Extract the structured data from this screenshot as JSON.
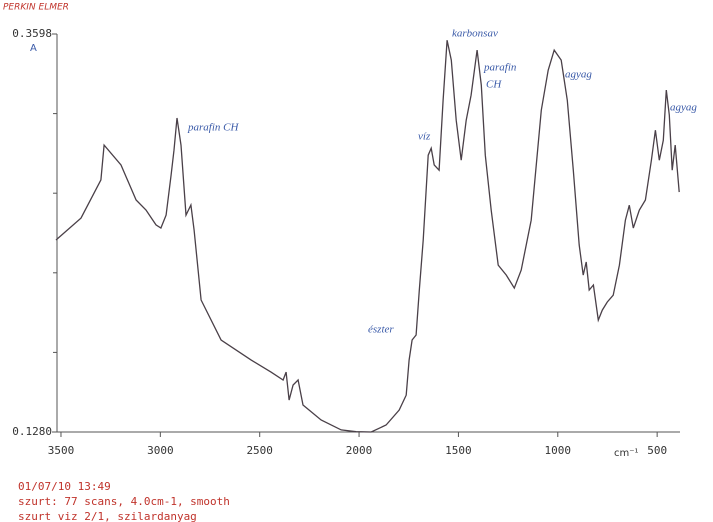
{
  "header": {
    "brand": "PERKIN ELMER"
  },
  "chart_data": {
    "type": "line",
    "y_unit": "A",
    "x_unit": "cm⁻¹",
    "xlim": [
      3520,
      385
    ],
    "xticks": [
      3500,
      3000,
      2500,
      2000,
      1500,
      1000,
      500
    ],
    "ylim": [
      0.128,
      0.3598
    ],
    "yticks": [
      {
        "value": 0.128,
        "label": "0.1280"
      },
      {
        "value": 0.3598,
        "label": "0.3598"
      }
    ],
    "yminorticks": [
      0.17436,
      0.22072,
      0.26708,
      0.31344
    ],
    "grid": false,
    "color": "#4a4048",
    "x": [
      3525,
      3399,
      3299,
      3283,
      3198,
      3122,
      3072,
      3022,
      2997,
      2971,
      2946,
      2931,
      2916,
      2896,
      2871,
      2846,
      2830,
      2795,
      2694,
      2543,
      2443,
      2382,
      2367,
      2352,
      2332,
      2307,
      2282,
      2191,
      2090,
      2015,
      1939,
      1864,
      1798,
      1763,
      1748,
      1733,
      1713,
      1697,
      1677,
      1652,
      1637,
      1622,
      1597,
      1577,
      1557,
      1536,
      1511,
      1486,
      1461,
      1436,
      1406,
      1385,
      1365,
      1335,
      1300,
      1259,
      1219,
      1184,
      1134,
      1083,
      1048,
      1018,
      983,
      952,
      922,
      892,
      872,
      857,
      842,
      821,
      796,
      776,
      751,
      721,
      690,
      660,
      640,
      620,
      590,
      559,
      529,
      509,
      489,
      469,
      454,
      439,
      424,
      409,
      389
    ],
    "values": [
      0.2398,
      0.2526,
      0.2748,
      0.2951,
      0.2835,
      0.2631,
      0.2573,
      0.2486,
      0.2468,
      0.2543,
      0.2776,
      0.2922,
      0.3109,
      0.2951,
      0.2543,
      0.2602,
      0.2456,
      0.2049,
      0.1816,
      0.1699,
      0.1629,
      0.1583,
      0.1629,
      0.1466,
      0.1554,
      0.1583,
      0.1437,
      0.135,
      0.1292,
      0.1282,
      0.128,
      0.1321,
      0.1408,
      0.1495,
      0.1699,
      0.1816,
      0.1845,
      0.2106,
      0.2397,
      0.2892,
      0.2933,
      0.2835,
      0.2805,
      0.3212,
      0.3562,
      0.3446,
      0.3096,
      0.2863,
      0.3096,
      0.3242,
      0.3504,
      0.33,
      0.2892,
      0.2572,
      0.2252,
      0.2194,
      0.2118,
      0.2223,
      0.2514,
      0.3154,
      0.3387,
      0.3504,
      0.3446,
      0.3212,
      0.2805,
      0.2369,
      0.2194,
      0.227,
      0.2107,
      0.2136,
      0.1932,
      0.199,
      0.2037,
      0.2077,
      0.2252,
      0.2514,
      0.2601,
      0.2468,
      0.2572,
      0.2631,
      0.2863,
      0.3038,
      0.2863,
      0.2979,
      0.3271,
      0.3126,
      0.2805,
      0.2951,
      0.2677
    ],
    "annotations": [
      "parafin CH",
      "észter",
      "víz",
      "karbonsav",
      "parafin",
      "CH",
      "agyag",
      "agyag"
    ]
  },
  "footer": {
    "lines": [
      "01/07/10 13:49",
      "szurt: 77 scans, 4.0cm-1, smooth",
      "szurt viz 2/1, szilardanyag"
    ]
  }
}
